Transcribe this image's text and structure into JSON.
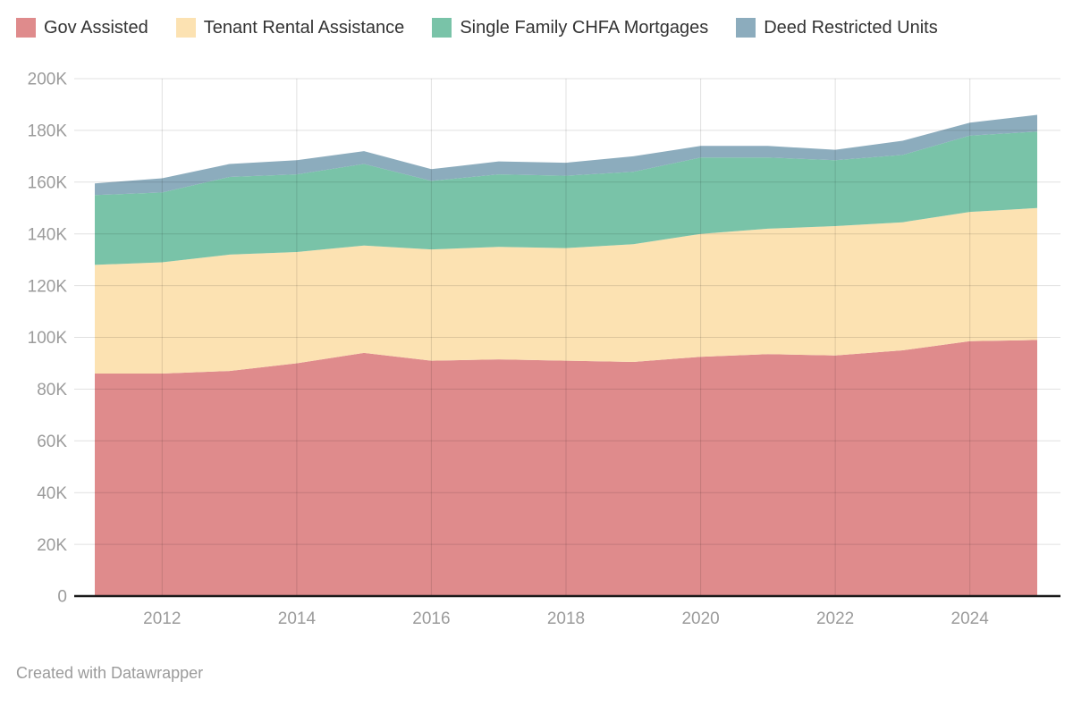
{
  "chart_data": {
    "type": "area",
    "stacked": true,
    "title": "",
    "xlabel": "",
    "ylabel": "",
    "x": [
      2011,
      2012,
      2013,
      2014,
      2015,
      2016,
      2017,
      2018,
      2019,
      2020,
      2021,
      2022,
      2023,
      2024,
      2025
    ],
    "series": [
      {
        "name": "Gov Assisted",
        "color": "#df8b8c",
        "values": [
          86000,
          86000,
          87000,
          90000,
          94000,
          91000,
          91500,
          91000,
          90500,
          92500,
          93500,
          93000,
          95000,
          98500,
          99000
        ]
      },
      {
        "name": "Tenant Rental Assistance",
        "color": "#fce2b2",
        "values": [
          42000,
          43000,
          45000,
          43000,
          41500,
          43000,
          43500,
          43500,
          45500,
          47500,
          48500,
          50000,
          49500,
          50000,
          51000
        ]
      },
      {
        "name": "Single Family CHFA Mortgages",
        "color": "#79c3a8",
        "values": [
          27000,
          27000,
          30000,
          30000,
          31500,
          26500,
          28000,
          28000,
          28000,
          29500,
          27500,
          25500,
          26000,
          29500,
          29500
        ]
      },
      {
        "name": "Deed Restricted Units",
        "color": "#8cacbd",
        "values": [
          4500,
          5500,
          5000,
          5500,
          5000,
          4500,
          5000,
          5000,
          6000,
          4500,
          4500,
          4000,
          5500,
          5000,
          6500
        ]
      }
    ],
    "ylim": [
      0,
      200000
    ],
    "y_tick_values": [
      0,
      20000,
      40000,
      60000,
      80000,
      100000,
      120000,
      140000,
      160000,
      180000,
      200000
    ],
    "y_tick_labels": [
      "0",
      "20K",
      "40K",
      "60K",
      "80K",
      "100K",
      "120K",
      "140K",
      "160K",
      "180K",
      "200K"
    ],
    "x_tick_values": [
      2012,
      2014,
      2016,
      2018,
      2020,
      2022,
      2024
    ],
    "x_tick_labels": [
      "2012",
      "2014",
      "2016",
      "2018",
      "2020",
      "2022",
      "2024"
    ],
    "grid": true,
    "legend_position": "top"
  },
  "colors": {
    "background": "#ffffff",
    "gridline": "rgba(0,0,0,0.12)",
    "baseline": "#1a1a1a",
    "axis_text": "#9b9b9b",
    "legend_text": "#333333"
  },
  "footer": {
    "attribution": "Created with Datawrapper"
  }
}
